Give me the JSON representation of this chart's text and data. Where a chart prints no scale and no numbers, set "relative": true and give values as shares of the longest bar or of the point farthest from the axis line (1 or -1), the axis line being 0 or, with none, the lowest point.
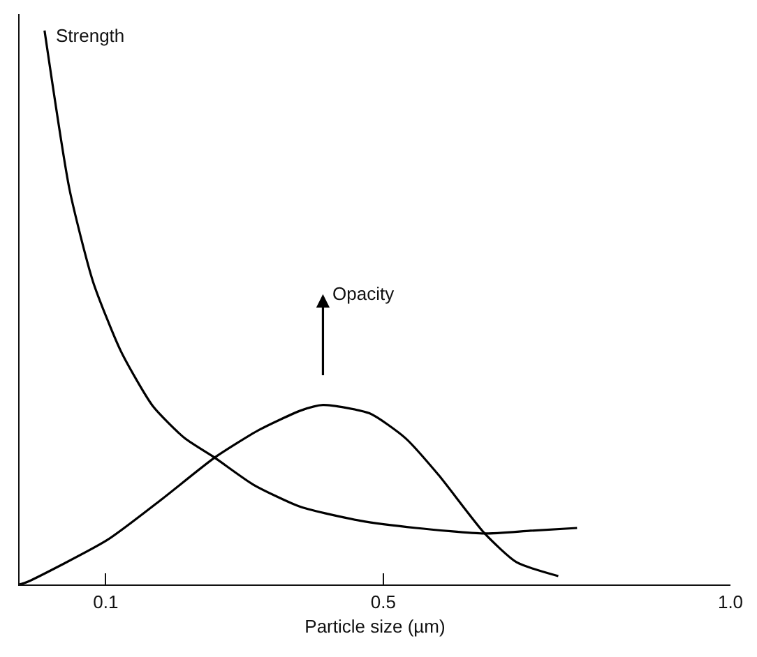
{
  "chart_data": {
    "type": "line",
    "relative": true,
    "xlabel": "Particle size (µm)",
    "xlim": [
      -0.024,
      1.0
    ],
    "xticks": [
      0.1,
      0.5,
      {
        "value": 1.0,
        "label": "1.0"
      }
    ],
    "marker": "none",
    "line_style": "solid",
    "series": [
      {
        "name": "Strength",
        "color": "#000000",
        "x": [
          0.012,
          0.048,
          0.082,
          0.122,
          0.168,
          0.214,
          0.257,
          0.313,
          0.381,
          0.467,
          0.547,
          0.646,
          0.712,
          0.779
        ],
        "values": [
          1.0,
          0.713,
          0.546,
          0.421,
          0.322,
          0.264,
          0.229,
          0.18,
          0.14,
          0.115,
          0.102,
          0.092,
          0.097,
          0.102
        ]
      },
      {
        "name": "Opacity",
        "color": "#000000",
        "x": [
          -0.024,
          -0.012,
          0.102,
          0.182,
          0.257,
          0.321,
          0.381,
          0.413,
          0.48,
          0.532,
          0.58,
          0.646,
          0.692,
          0.752
        ],
        "values": [
          0,
          0.005,
          0.08,
          0.155,
          0.229,
          0.279,
          0.314,
          0.324,
          0.309,
          0.264,
          0.197,
          0.092,
          0.04,
          0.015
        ]
      }
    ]
  }
}
